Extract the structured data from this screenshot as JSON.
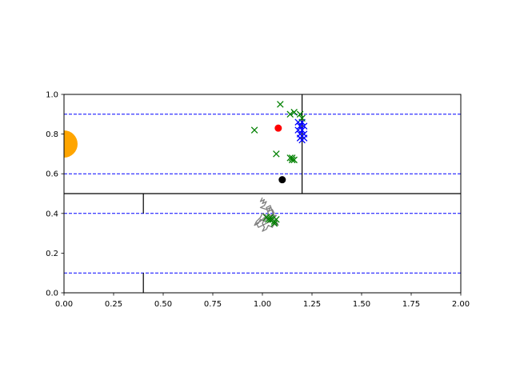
{
  "chart_data": {
    "type": "scatter",
    "title": "",
    "xlabel": "",
    "ylabel": "",
    "xlim": [
      0,
      2
    ],
    "ylim": [
      0,
      1
    ],
    "grid": false,
    "x_ticks": [
      0.0,
      0.25,
      0.5,
      0.75,
      1.0,
      1.25,
      1.5,
      1.75,
      2.0
    ],
    "y_ticks": [
      0.0,
      0.2,
      0.4,
      0.6,
      0.8,
      1.0
    ],
    "x_tick_labels": [
      "0.00",
      "0.25",
      "0.50",
      "0.75",
      "1.00",
      "1.25",
      "1.50",
      "1.75",
      "2.00"
    ],
    "y_tick_labels": [
      "0.0",
      "0.2",
      "0.4",
      "0.6",
      "0.8",
      "1.0"
    ],
    "colors": {
      "walls": "#000000",
      "dashed_lines": "#0000ff",
      "orange_circle": "#ffa500",
      "red_dot": "#ff0000",
      "black_dot": "#000000",
      "green_x": "#008000",
      "blue_x": "#0000ff",
      "trajectory": "#808080"
    },
    "walls": [
      {
        "x": [
          0,
          2
        ],
        "y": [
          0.5,
          0.5
        ]
      },
      {
        "x": [
          1.2,
          1.2
        ],
        "y": [
          0.5,
          1.0
        ]
      },
      {
        "x": [
          0.4,
          0.4
        ],
        "y": [
          0.4,
          0.5
        ]
      },
      {
        "x": [
          0.4,
          0.4
        ],
        "y": [
          0.0,
          0.1
        ]
      }
    ],
    "dashed_lines": [
      0.9,
      0.6,
      0.4,
      0.1
    ],
    "orange_circle": {
      "x": 0.0,
      "y": 0.75,
      "r": 0.05
    },
    "red_dot": {
      "x": 1.08,
      "y": 0.83
    },
    "black_dot": {
      "x": 1.1,
      "y": 0.57
    },
    "green_x_upper": [
      {
        "x": 0.96,
        "y": 0.82
      },
      {
        "x": 1.09,
        "y": 0.95
      },
      {
        "x": 1.14,
        "y": 0.9
      },
      {
        "x": 1.16,
        "y": 0.91
      },
      {
        "x": 1.19,
        "y": 0.9
      },
      {
        "x": 1.2,
        "y": 0.88
      },
      {
        "x": 1.07,
        "y": 0.7
      },
      {
        "x": 1.14,
        "y": 0.68
      },
      {
        "x": 1.15,
        "y": 0.67
      },
      {
        "x": 1.15,
        "y": 0.68
      },
      {
        "x": 1.16,
        "y": 0.67
      }
    ],
    "blue_x": [
      {
        "x": 1.18,
        "y": 0.86
      },
      {
        "x": 1.2,
        "y": 0.86
      },
      {
        "x": 1.19,
        "y": 0.84
      },
      {
        "x": 1.21,
        "y": 0.84
      },
      {
        "x": 1.18,
        "y": 0.82
      },
      {
        "x": 1.2,
        "y": 0.82
      },
      {
        "x": 1.19,
        "y": 0.8
      },
      {
        "x": 1.21,
        "y": 0.8
      },
      {
        "x": 1.2,
        "y": 0.79
      },
      {
        "x": 1.19,
        "y": 0.78
      },
      {
        "x": 1.21,
        "y": 0.78
      },
      {
        "x": 1.2,
        "y": 0.77
      }
    ],
    "green_x_lower": [
      {
        "x": 1.02,
        "y": 0.38
      },
      {
        "x": 1.03,
        "y": 0.37
      },
      {
        "x": 1.04,
        "y": 0.38
      },
      {
        "x": 1.05,
        "y": 0.37
      },
      {
        "x": 1.06,
        "y": 0.36
      },
      {
        "x": 1.07,
        "y": 0.37
      },
      {
        "x": 1.06,
        "y": 0.35
      },
      {
        "x": 1.04,
        "y": 0.37
      }
    ],
    "trajectory": [
      [
        1.0,
        0.48
      ],
      [
        0.99,
        0.46
      ],
      [
        1.01,
        0.47
      ],
      [
        1.0,
        0.45
      ],
      [
        1.02,
        0.46
      ],
      [
        1.01,
        0.44
      ],
      [
        0.99,
        0.43
      ],
      [
        1.02,
        0.42
      ],
      [
        1.04,
        0.43
      ],
      [
        1.03,
        0.41
      ],
      [
        1.05,
        0.42
      ],
      [
        1.06,
        0.4
      ],
      [
        1.04,
        0.39
      ],
      [
        1.07,
        0.39
      ],
      [
        1.05,
        0.37
      ],
      [
        1.03,
        0.38
      ],
      [
        1.01,
        0.36
      ],
      [
        0.99,
        0.37
      ],
      [
        0.98,
        0.35
      ],
      [
        0.96,
        0.34
      ],
      [
        0.97,
        0.36
      ],
      [
        0.99,
        0.38
      ],
      [
        1.0,
        0.4
      ],
      [
        1.02,
        0.39
      ],
      [
        1.01,
        0.37
      ],
      [
        1.0,
        0.35
      ],
      [
        1.01,
        0.33
      ],
      [
        1.0,
        0.31
      ],
      [
        1.02,
        0.32
      ],
      [
        1.03,
        0.34
      ],
      [
        1.05,
        0.33
      ],
      [
        1.06,
        0.35
      ],
      [
        1.08,
        0.34
      ],
      [
        1.07,
        0.36
      ],
      [
        1.05,
        0.38
      ],
      [
        1.03,
        0.4
      ],
      [
        1.02,
        0.43
      ],
      [
        1.04,
        0.44
      ],
      [
        1.05,
        0.41
      ],
      [
        1.06,
        0.38
      ],
      [
        1.04,
        0.36
      ],
      [
        1.02,
        0.35
      ],
      [
        1.0,
        0.34
      ],
      [
        0.98,
        0.33
      ],
      [
        0.97,
        0.35
      ],
      [
        0.99,
        0.36
      ],
      [
        1.01,
        0.38
      ],
      [
        1.03,
        0.37
      ],
      [
        1.05,
        0.36
      ],
      [
        1.06,
        0.34
      ]
    ]
  }
}
